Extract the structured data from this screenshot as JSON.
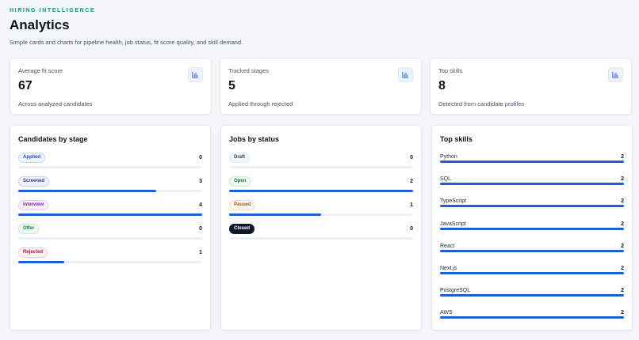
{
  "header": {
    "eyebrow": "HIRING INTELLIGENCE",
    "title": "Analytics",
    "subtitle": "Simple cards and charts for pipeline health, job status, fit score quality, and skill demand."
  },
  "stats": [
    {
      "label": "Average fit score",
      "value": "67",
      "caption": "Across analyzed candidates",
      "icon": "bar-chart-icon"
    },
    {
      "label": "Tracked stages",
      "value": "5",
      "caption": "Applied through rejected",
      "icon": "bar-chart-icon"
    },
    {
      "label": "Top skills",
      "value": "8",
      "caption": "Detected from candidate profiles",
      "icon": "bar-chart-icon"
    }
  ],
  "panels": {
    "stage": {
      "title": "Candidates by stage",
      "rows": [
        {
          "label": "Applied",
          "count": "0",
          "fraction": 0
        },
        {
          "label": "Screened",
          "count": "3",
          "fraction": 0.75
        },
        {
          "label": "Interview",
          "count": "4",
          "fraction": 1
        },
        {
          "label": "Offer",
          "count": "0",
          "fraction": 0
        },
        {
          "label": "Rejected",
          "count": "1",
          "fraction": 0.25
        }
      ]
    },
    "status": {
      "title": "Jobs by status",
      "rows": [
        {
          "label": "Draft",
          "count": "0",
          "fraction": 0
        },
        {
          "label": "Open",
          "count": "2",
          "fraction": 1
        },
        {
          "label": "Paused",
          "count": "1",
          "fraction": 0.5
        },
        {
          "label": "Closed",
          "count": "0",
          "fraction": 0
        }
      ]
    },
    "skills": {
      "title": "Top skills",
      "rows": [
        {
          "label": "Python",
          "count": "2",
          "fraction": 1
        },
        {
          "label": "SQL",
          "count": "2",
          "fraction": 1
        },
        {
          "label": "TypeScript",
          "count": "2",
          "fraction": 1
        },
        {
          "label": "JavaScript",
          "count": "2",
          "fraction": 1
        },
        {
          "label": "React",
          "count": "2",
          "fraction": 1
        },
        {
          "label": "Next.js",
          "count": "2",
          "fraction": 1
        },
        {
          "label": "PostgreSQL",
          "count": "2",
          "fraction": 1
        },
        {
          "label": "AWS",
          "count": "2",
          "fraction": 1
        }
      ]
    }
  },
  "colors": {
    "accent": "#1f5ed8",
    "eyebrow": "#159a6a",
    "track": "#edf1f5"
  }
}
